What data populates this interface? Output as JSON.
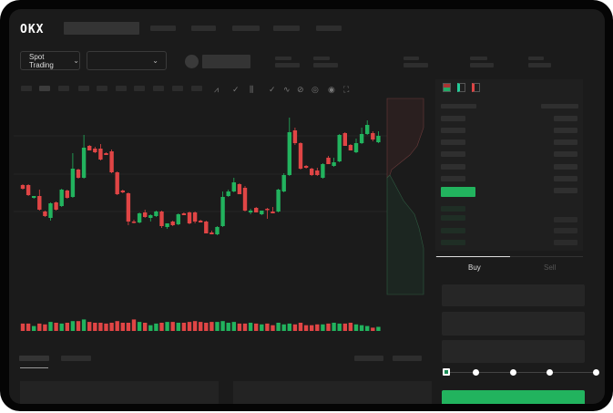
{
  "brand": {
    "logo": "OKX"
  },
  "header": {
    "trading_mode": "Spot Trading"
  },
  "order_form": {
    "tabs": [
      {
        "label": "Buy",
        "active": true
      },
      {
        "label": "Sell",
        "active": false
      }
    ],
    "leverage_steps": 5,
    "selected_step": 0
  },
  "colors": {
    "up": "#22b35e",
    "down": "#e04545",
    "background": "#1b1b1b",
    "panel": "#1f1f1f"
  },
  "toolbar_icons": [
    "indicator-icon",
    "indicator-icon",
    "candle-type-icon",
    "line-icon",
    "draw-icon",
    "camera-icon",
    "settings-icon",
    "fullscreen-icon"
  ],
  "chart_data": {
    "type": "candlestick",
    "ohlc": [
      [
        97,
        98,
        92,
        93
      ],
      [
        97,
        98,
        85,
        86
      ],
      [
        83,
        85,
        82,
        85
      ],
      [
        85,
        92,
        69,
        70
      ],
      [
        68,
        69,
        62,
        63
      ],
      [
        61,
        78,
        58,
        77
      ],
      [
        78,
        79,
        69,
        70
      ],
      [
        74,
        93,
        73,
        92
      ],
      [
        91,
        92,
        82,
        83
      ],
      [
        84,
        132,
        83,
        115
      ],
      [
        114,
        115,
        104,
        105
      ],
      [
        105,
        152,
        104,
        138
      ],
      [
        140,
        141,
        135,
        135
      ],
      [
        137,
        139,
        132,
        133
      ],
      [
        137,
        142,
        124,
        125
      ],
      [
        132,
        133,
        130,
        130
      ],
      [
        134,
        136,
        110,
        111
      ],
      [
        111,
        112,
        86,
        87
      ],
      [
        91,
        92,
        88,
        89
      ],
      [
        88,
        89,
        53,
        57
      ],
      [
        57,
        59,
        55,
        56
      ],
      [
        56,
        67,
        55,
        66
      ],
      [
        67,
        70,
        61,
        62
      ],
      [
        61,
        65,
        57,
        64
      ],
      [
        63,
        69,
        62,
        68
      ],
      [
        68,
        69,
        50,
        52
      ],
      [
        51,
        55,
        49,
        55
      ],
      [
        57,
        58,
        52,
        53
      ],
      [
        54,
        66,
        53,
        65
      ],
      [
        66,
        67,
        64,
        64
      ],
      [
        67,
        68,
        54,
        55
      ],
      [
        67,
        68,
        55,
        57
      ],
      [
        58,
        59,
        56,
        56
      ],
      [
        57,
        58,
        44,
        44
      ],
      [
        45,
        47,
        43,
        43
      ],
      [
        43,
        52,
        42,
        51
      ],
      [
        52,
        90,
        51,
        84
      ],
      [
        85,
        92,
        84,
        90
      ],
      [
        90,
        105,
        89,
        100
      ],
      [
        98,
        99,
        87,
        87
      ],
      [
        94,
        96,
        68,
        69
      ],
      [
        67,
        71,
        65,
        69
      ],
      [
        72,
        73,
        67,
        67
      ],
      [
        65,
        69,
        64,
        69
      ],
      [
        71,
        72,
        60,
        70
      ],
      [
        68,
        73,
        66,
        66
      ],
      [
        68,
        93,
        67,
        92
      ],
      [
        90,
        110,
        89,
        108
      ],
      [
        108,
        171,
        107,
        155
      ],
      [
        157,
        160,
        141,
        143
      ],
      [
        143,
        144,
        114,
        115
      ],
      [
        118,
        119,
        115,
        116
      ],
      [
        115,
        116,
        107,
        108
      ],
      [
        113,
        116,
        107,
        108
      ],
      [
        105,
        121,
        104,
        120
      ],
      [
        127,
        129,
        120,
        120
      ],
      [
        118,
        127,
        117,
        122
      ],
      [
        123,
        153,
        122,
        152
      ],
      [
        154,
        155,
        140,
        140
      ],
      [
        141,
        142,
        135,
        135
      ],
      [
        133,
        148,
        132,
        143
      ],
      [
        143,
        160,
        142,
        153
      ],
      [
        153,
        168,
        152,
        163
      ],
      [
        154,
        156,
        145,
        147
      ],
      [
        144,
        156,
        143,
        151
      ]
    ],
    "volume": [
      9,
      9,
      6,
      9,
      8,
      11,
      10,
      9,
      10,
      12,
      12,
      14,
      11,
      10,
      10,
      9,
      10,
      12,
      10,
      10,
      14,
      11,
      10,
      7,
      9,
      10,
      11,
      11,
      10,
      10,
      11,
      12,
      11,
      10,
      11,
      11,
      12,
      10,
      11,
      9,
      9,
      10,
      9,
      8,
      9,
      7,
      10,
      8,
      9,
      8,
      10,
      7,
      7,
      8,
      8,
      9,
      10,
      9,
      9,
      10,
      8,
      7,
      6,
      4,
      5
    ],
    "grid": true
  }
}
